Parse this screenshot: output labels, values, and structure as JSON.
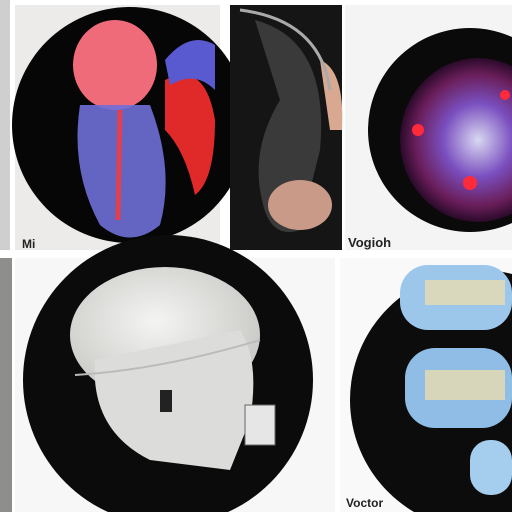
{
  "captions": {
    "top_left": "Mi",
    "top_right": "Vogioh",
    "bottom_right": "Voctor"
  }
}
